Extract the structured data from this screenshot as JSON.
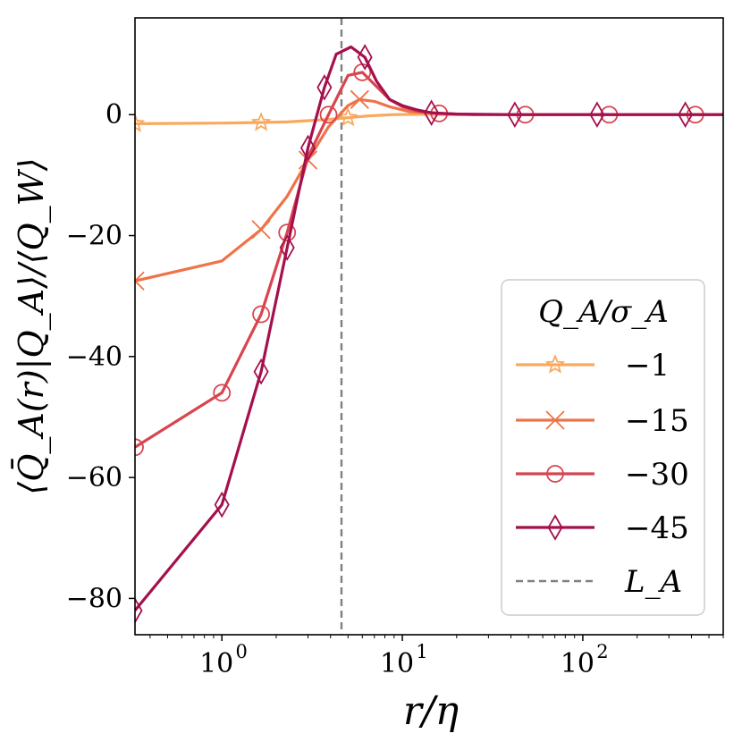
{
  "chart_data": {
    "type": "line",
    "x_scale": "log",
    "xlim": [
      0.33,
      600
    ],
    "ylim": [
      -86,
      16
    ],
    "xlabel": "r/η",
    "ylabel": "⟨Q̄_A(r)|Q_A⟩/⟨Q_W⟩",
    "xticks": [
      {
        "value": 1,
        "mantissa": "10",
        "exponent": "0"
      },
      {
        "value": 10,
        "mantissa": "10",
        "exponent": "1"
      },
      {
        "value": 100,
        "mantissa": "10",
        "exponent": "2"
      }
    ],
    "yticks": [
      {
        "value": 0,
        "label": "0"
      },
      {
        "value": -20,
        "label": "−20"
      },
      {
        "value": -40,
        "label": "−40"
      },
      {
        "value": -60,
        "label": "−60"
      },
      {
        "value": -80,
        "label": "−80"
      }
    ],
    "reference_line": {
      "name": "L_A",
      "x": 4.6,
      "color": "#808080"
    },
    "legend": {
      "title": "Q_A/σ_A",
      "placement": "lower-right"
    },
    "series": [
      {
        "name": "−1",
        "color": "#f9a95c",
        "marker": "star",
        "x": [
          0.33,
          1.0,
          1.65,
          2.3,
          3.0,
          3.9,
          5.0,
          6.5,
          9.0,
          12.0,
          16,
          25,
          40,
          80,
          150,
          400,
          600
        ],
        "y": [
          -1.5,
          -1.4,
          -1.3,
          -1.2,
          -1.0,
          -0.8,
          -0.5,
          -0.2,
          0.0,
          0.05,
          0.02,
          0,
          0,
          0,
          0,
          0,
          0
        ],
        "marker_x": [
          0.33,
          1.65,
          5.0
        ]
      },
      {
        "name": "−15",
        "color": "#ef7348",
        "marker": "x",
        "x": [
          0.33,
          1.0,
          1.65,
          2.3,
          3.0,
          3.9,
          5.0,
          5.8,
          7.0,
          8.5,
          11.0,
          14.0,
          18,
          25,
          40,
          100,
          600
        ],
        "y": [
          -27.5,
          -24.2,
          -19.0,
          -13.5,
          -7.5,
          -2.0,
          1.5,
          2.5,
          2.2,
          1.3,
          0.5,
          0.3,
          0.1,
          0,
          0,
          0,
          0
        ],
        "marker_x": [
          0.33,
          1.65,
          3.0,
          5.8
        ]
      },
      {
        "name": "−30",
        "color": "#d8454f",
        "marker": "circle",
        "x": [
          0.33,
          1.0,
          1.65,
          2.3,
          3.0,
          3.9,
          5.0,
          6.0,
          7.0,
          8.5,
          10.0,
          12.5,
          16,
          25,
          48,
          140,
          420,
          600
        ],
        "y": [
          -55.0,
          -46.0,
          -33.0,
          -19.5,
          -7.0,
          0.0,
          6.5,
          7.0,
          5.0,
          2.5,
          1.3,
          0.5,
          0.2,
          0,
          0,
          0,
          0,
          0
        ],
        "marker_x": [
          0.33,
          1.0,
          1.65,
          2.3,
          3.9,
          6.0,
          16,
          48,
          140,
          420
        ]
      },
      {
        "name": "−45",
        "color": "#a4104d",
        "marker": "diamond",
        "x": [
          0.33,
          1.0,
          1.65,
          2.3,
          3.0,
          3.7,
          4.3,
          5.2,
          6.2,
          7.2,
          8.5,
          10.0,
          12.0,
          14.5,
          20,
          42,
          120,
          370,
          600
        ],
        "y": [
          -82.0,
          -64.5,
          -42.5,
          -22.0,
          -5.5,
          4.5,
          10.0,
          11.2,
          9.5,
          5.5,
          2.5,
          1.5,
          0.8,
          0.3,
          0.1,
          0,
          0,
          0,
          0
        ],
        "marker_x": [
          0.33,
          1.0,
          1.65,
          2.3,
          3.0,
          3.7,
          6.2,
          14.5,
          42,
          120,
          370
        ]
      }
    ]
  }
}
